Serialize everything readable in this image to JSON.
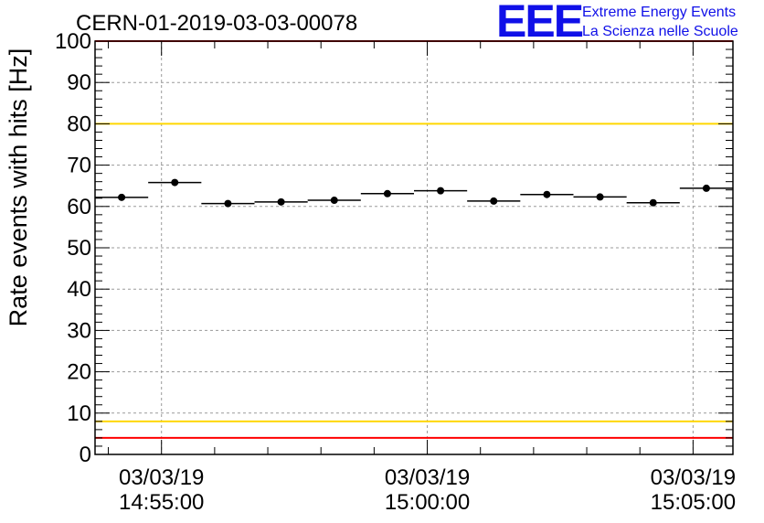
{
  "header": {
    "title": "CERN-01-2019-03-03-00078",
    "logo_mark": "EEE",
    "logo_line1": "Extreme Energy Events",
    "logo_line2": "La Scienza nelle Scuole"
  },
  "colors": {
    "limit_upper": "#ff0000",
    "warn_upper": "#ffd700",
    "warn_lower": "#ffd700",
    "limit_lower": "#ff0000",
    "logo": "#1010e8",
    "marker": "#000000"
  },
  "chart_data": {
    "type": "scatter",
    "title": "CERN-01-2019-03-03-00078",
    "ylabel": "Rate events with hits [Hz]",
    "xlabel": "",
    "x_axis": "time",
    "xlim": [
      "14:53:45",
      "15:05:45"
    ],
    "ylim": [
      0,
      100
    ],
    "grid": true,
    "yticks": [
      0,
      10,
      20,
      30,
      40,
      50,
      60,
      70,
      80,
      90,
      100
    ],
    "xtick_labels": [
      {
        "t": "14:55:00",
        "date": "03/03/19",
        "time": "14:55:00"
      },
      {
        "t": "15:00:00",
        "date": "03/03/19",
        "time": "15:00:00"
      },
      {
        "t": "15:05:00",
        "date": "03/03/19",
        "time": "15:05:00"
      }
    ],
    "bin_width_seconds": 60,
    "series": [
      {
        "points": [
          {
            "t": "14:53:45",
            "y": 62.2
          },
          {
            "t": "14:54:45",
            "y": 65.8
          },
          {
            "t": "14:55:45",
            "y": 60.7
          },
          {
            "t": "14:56:45",
            "y": 61.1
          },
          {
            "t": "14:57:45",
            "y": 61.5
          },
          {
            "t": "14:58:45",
            "y": 63.1
          },
          {
            "t": "14:59:45",
            "y": 63.8
          },
          {
            "t": "15:00:45",
            "y": 61.3
          },
          {
            "t": "15:01:45",
            "y": 62.9
          },
          {
            "t": "15:02:45",
            "y": 62.3
          },
          {
            "t": "15:03:45",
            "y": 60.9
          },
          {
            "t": "15:04:45",
            "y": 64.4
          }
        ]
      }
    ],
    "reference_lines": [
      {
        "y": 100,
        "color": "#ff0000"
      },
      {
        "y": 80,
        "color": "#ffd700"
      },
      {
        "y": 8,
        "color": "#ffd700"
      },
      {
        "y": 4,
        "color": "#ff0000"
      }
    ]
  }
}
